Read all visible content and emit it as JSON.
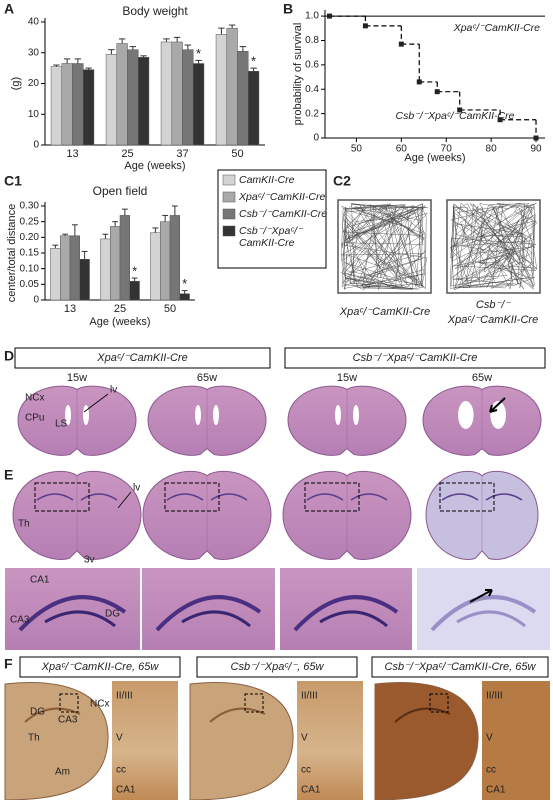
{
  "figure_labels": [
    "A",
    "B",
    "C1",
    "C2",
    "D",
    "E",
    "F"
  ],
  "chart_data": [
    {
      "type": "bar",
      "title": "Body weight",
      "ylabel": "(g)",
      "xlabel": "Age (weeks)",
      "categories": [
        "13",
        "25",
        "37",
        "50"
      ],
      "ylim": [
        0,
        40
      ],
      "yticks": [
        0,
        10,
        20,
        30,
        40
      ],
      "series": [
        {
          "color": "#d3d3d3",
          "values": [
            25.5,
            29.5,
            33.5,
            36
          ],
          "errors": [
            0.5,
            1.5,
            1,
            2
          ]
        },
        {
          "color": "#a9a9a9",
          "values": [
            26.5,
            33,
            33.5,
            38
          ],
          "errors": [
            1.5,
            1.5,
            1.5,
            1
          ]
        },
        {
          "color": "#767676",
          "values": [
            26.5,
            31,
            31,
            30.5
          ],
          "errors": [
            1.5,
            1,
            1.5,
            1.5
          ]
        },
        {
          "color": "#333333",
          "values": [
            24.5,
            28.5,
            26.5,
            24
          ],
          "errors": [
            0.5,
            0.5,
            1,
            1
          ],
          "marks": [
            null,
            null,
            "*",
            "*"
          ]
        }
      ]
    },
    {
      "type": "step",
      "xlabel": "Age (weeks)",
      "ylabel": "probability of survival",
      "xlim": [
        43,
        92
      ],
      "xticks": [
        50,
        60,
        70,
        80,
        90
      ],
      "ylim": [
        0,
        1.05
      ],
      "yticks": [
        0,
        0.2,
        0.4,
        0.6,
        0.8,
        {
          "value": 1,
          "label": "1.0"
        }
      ],
      "series": [
        {
          "name": "Xpaᶜ/⁻CamKII-Cre",
          "color": "#000000",
          "x": [
            43,
            92
          ],
          "values": [
            1,
            1
          ]
        },
        {
          "name": "Csb⁻/⁻Xpaᶜ/⁻CamKII-Cre",
          "color": "#000000",
          "dashed": true,
          "x": [
            44,
            52,
            60,
            64,
            68,
            73,
            82,
            90
          ],
          "values": [
            1,
            0.92,
            0.77,
            0.46,
            0.38,
            0.23,
            0.15,
            0
          ]
        }
      ]
    },
    {
      "type": "bar",
      "title": "Open field",
      "ylabel": "center/total distance",
      "xlabel": "Age (weeks)",
      "categories": [
        "13",
        "25",
        "50"
      ],
      "ylim": [
        0,
        0.3
      ],
      "yticks": [
        0,
        0.05,
        {
          "value": 0.1,
          "label": "0.10"
        },
        0.15,
        {
          "value": 0.2,
          "label": "0.20"
        },
        0.25,
        {
          "value": 0.3,
          "label": "0.30"
        }
      ],
      "legend": true,
      "series": [
        {
          "name": "CamKII-Cre",
          "color": "#d3d3d3",
          "values": [
            0.165,
            0.195,
            0.215
          ],
          "errors": [
            0.01,
            0.015,
            0.015
          ]
        },
        {
          "name": "Xpaᶜ/⁻CamKII-Cre",
          "color": "#a9a9a9",
          "values": [
            0.205,
            0.235,
            0.25
          ],
          "errors": [
            0.005,
            0.015,
            0.02
          ]
        },
        {
          "name": "Csb⁻/⁻CamKII-Cre",
          "color": "#767676",
          "values": [
            0.205,
            0.27,
            0.27
          ],
          "errors": [
            0.035,
            0.02,
            0.03
          ]
        },
        {
          "name": "Csb⁻/⁻Xpaᶜ/⁻ CamKII-Cre",
          "color": "#333333",
          "values": [
            0.13,
            0.06,
            0.02
          ],
          "errors": [
            0.025,
            0.01,
            0.01
          ],
          "marks": [
            null,
            "*",
            "*"
          ]
        }
      ]
    }
  ],
  "panel_c2": {
    "labels": [
      "Xpaᶜ/⁻CamKII-Cre",
      "Csb⁻/⁻",
      "Xpaᶜ/⁻CamKII-Cre"
    ]
  },
  "panel_d": {
    "headers": [
      "Xpaᶜ/⁻CamKII-Cre",
      "Csb⁻/⁻Xpaᶜ/⁻CamKII-Cre"
    ],
    "ages": [
      "15w",
      "65w",
      "15w",
      "65w"
    ],
    "annotations": [
      "NCx",
      "CPu",
      "LS",
      "lv"
    ]
  },
  "panel_e": {
    "annotations": [
      "lv",
      "Th",
      "3v",
      "CA1",
      "CA3",
      "DG"
    ]
  },
  "panel_f": {
    "panels": [
      {
        "header": "Xpaᶜ/⁻CamKII-Cre, 65w",
        "labels": [
          "DG",
          "CA3",
          "NCx",
          "Th",
          "Am"
        ],
        "zoom_labels": [
          "II/III",
          "V",
          "cc",
          "CA1"
        ]
      },
      {
        "header": "Csb⁻/⁻Xpaᶜ/⁻, 65w",
        "labels": [],
        "zoom_labels": [
          "II/III",
          "V",
          "cc",
          "CA1"
        ]
      },
      {
        "header": "Csb⁻/⁻Xpaᶜ/⁻CamKII-Cre, 65w",
        "labels": [],
        "zoom_labels": [
          "II/III",
          "V",
          "cc",
          "CA1"
        ]
      }
    ]
  }
}
